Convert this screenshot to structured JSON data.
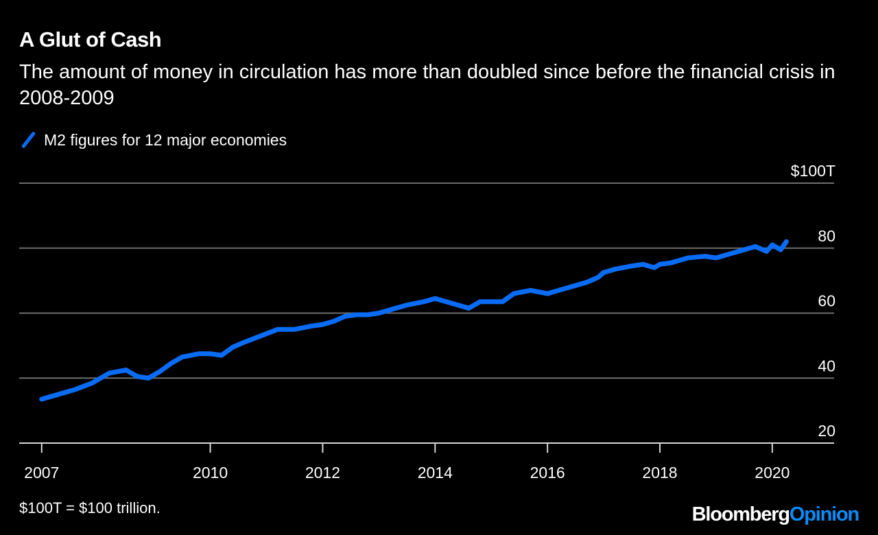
{
  "colors": {
    "accent": "#0a6cf5",
    "grid": "#6e6e6e",
    "text": "#ffffff",
    "background": "#000000",
    "brand_accent": "#0a8cf8"
  },
  "footnote": "$100T = $100 trillion.",
  "brand": {
    "part1": "Bloomberg",
    "part2": "Opinion"
  },
  "chart_data": {
    "type": "line",
    "title": "A Glut of Cash",
    "subtitle": "The amount of money in circulation has more than doubled since before the financial crisis in 2008-2009",
    "legend_placement": "top-left",
    "y_axis_side": "right",
    "grid": "horizontal",
    "ylim": [
      20,
      100
    ],
    "yticks": [
      {
        "value": 100,
        "label": "$100T"
      },
      {
        "value": 80,
        "label": "80"
      },
      {
        "value": 60,
        "label": "60"
      },
      {
        "value": 40,
        "label": "40"
      },
      {
        "value": 20,
        "label": "20"
      }
    ],
    "xlim": [
      2006.6,
      2021.1
    ],
    "xticks": [
      2007,
      2010,
      2012,
      2014,
      2016,
      2018,
      2020
    ],
    "xtick_labels": [
      "2007",
      "2010",
      "2012",
      "2014",
      "2016",
      "2018",
      "2020"
    ],
    "series": [
      {
        "name": "M2 figures for 12 major economies",
        "x": [
          2007.0,
          2007.3,
          2007.6,
          2007.9,
          2008.2,
          2008.5,
          2008.7,
          2008.9,
          2009.1,
          2009.3,
          2009.5,
          2009.8,
          2010.0,
          2010.2,
          2010.4,
          2010.6,
          2010.9,
          2011.2,
          2011.5,
          2011.8,
          2012.0,
          2012.2,
          2012.4,
          2012.6,
          2012.8,
          2013.0,
          2013.2,
          2013.5,
          2013.8,
          2014.0,
          2014.3,
          2014.5,
          2014.6,
          2014.8,
          2015.0,
          2015.2,
          2015.4,
          2015.7,
          2016.0,
          2016.2,
          2016.4,
          2016.7,
          2016.9,
          2017.0,
          2017.2,
          2017.5,
          2017.7,
          2017.9,
          2018.0,
          2018.2,
          2018.5,
          2018.8,
          2019.0,
          2019.2,
          2019.5,
          2019.7,
          2019.9,
          2020.0,
          2020.15,
          2020.25
        ],
        "y": [
          33.5,
          35.0,
          36.5,
          38.5,
          41.5,
          42.5,
          40.5,
          40.0,
          42.0,
          44.5,
          46.5,
          47.5,
          47.5,
          47.0,
          49.5,
          51.0,
          53.0,
          55.0,
          55.0,
          56.0,
          56.5,
          57.5,
          59.0,
          59.5,
          59.5,
          60.0,
          61.0,
          62.5,
          63.5,
          64.5,
          63.0,
          62.0,
          61.5,
          63.5,
          63.5,
          63.5,
          66.0,
          67.0,
          66.0,
          67.0,
          68.0,
          69.5,
          71.0,
          72.5,
          73.5,
          74.5,
          75.0,
          74.0,
          75.0,
          75.5,
          77.0,
          77.5,
          77.0,
          78.0,
          79.5,
          80.5,
          79.0,
          81.0,
          79.5,
          82.0
        ]
      }
    ]
  }
}
